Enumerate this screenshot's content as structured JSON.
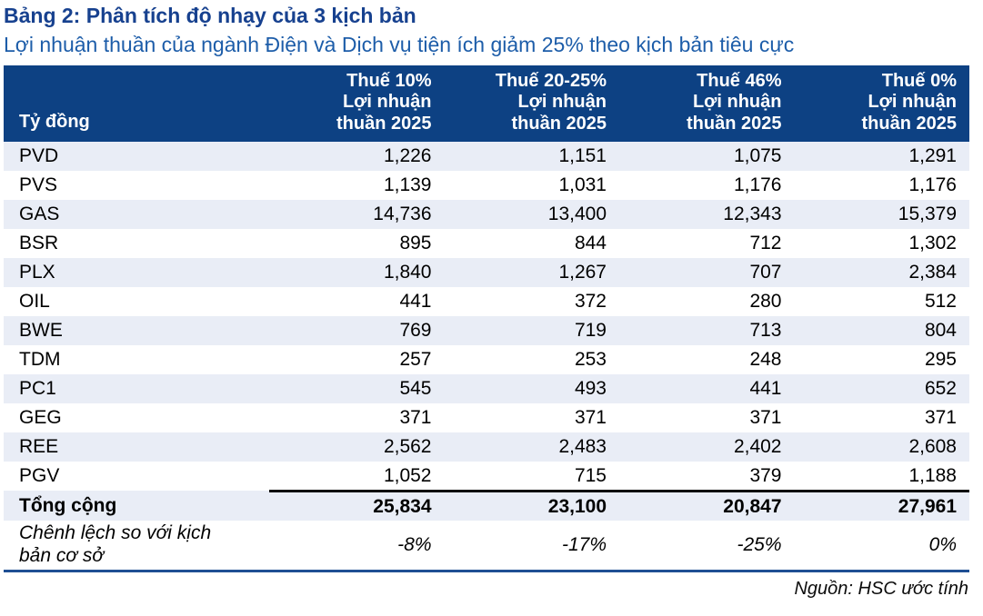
{
  "page": {
    "title": "Bảng 2: Phân tích độ nhạy của 3 kịch bản",
    "subtitle": "Lợi nhuận thuần của ngành Điện và Dịch vụ tiện ích giảm 25% theo kịch bản tiêu cực",
    "source": "Nguồn: HSC ước tính"
  },
  "colors": {
    "title_text": "#17418F",
    "subtitle_text": "#1D5DA9",
    "header_bg": "#0D4183",
    "header_text": "#FFFFFF",
    "row_stripe_bg": "#E9EDF6",
    "total_top_border": "#0B0B0B",
    "table_bottom_border": "#1F4F93"
  },
  "table": {
    "unit_label": "Tỷ đồng",
    "columns": [
      {
        "label": "Thuế 10%\nLợi nhuận\nthuần 2025"
      },
      {
        "label": "Thuế 20-25%\nLợi nhuận\nthuần 2025"
      },
      {
        "label": "Thuế 46%\nLợi nhuận\nthuần 2025"
      },
      {
        "label": "Thuế 0%\nLợi nhuận\nthuần 2025"
      }
    ],
    "rows": [
      {
        "ticker": "PVD",
        "values": [
          "1,226",
          "1,151",
          "1,075",
          "1,291"
        ]
      },
      {
        "ticker": "PVS",
        "values": [
          "1,139",
          "1,031",
          "1,176",
          "1,176"
        ]
      },
      {
        "ticker": "GAS",
        "values": [
          "14,736",
          "13,400",
          "12,343",
          "15,379"
        ]
      },
      {
        "ticker": "BSR",
        "values": [
          "895",
          "844",
          "712",
          "1,302"
        ]
      },
      {
        "ticker": "PLX",
        "values": [
          "1,840",
          "1,267",
          "707",
          "2,384"
        ]
      },
      {
        "ticker": "OIL",
        "values": [
          "441",
          "372",
          "280",
          "512"
        ]
      },
      {
        "ticker": "BWE",
        "values": [
          "769",
          "719",
          "713",
          "804"
        ]
      },
      {
        "ticker": "TDM",
        "values": [
          "257",
          "253",
          "248",
          "295"
        ]
      },
      {
        "ticker": "PC1",
        "values": [
          "545",
          "493",
          "441",
          "652"
        ]
      },
      {
        "ticker": "GEG",
        "values": [
          "371",
          "371",
          "371",
          "371"
        ]
      },
      {
        "ticker": "REE",
        "values": [
          "2,562",
          "2,483",
          "2,402",
          "2,608"
        ]
      },
      {
        "ticker": "PGV",
        "values": [
          "1,052",
          "715",
          "379",
          "1,188"
        ]
      }
    ],
    "total": {
      "label": "Tổng cộng",
      "values": [
        "25,834",
        "23,100",
        "20,847",
        "27,961"
      ]
    },
    "delta": {
      "label": "Chênh lệch so với kịch bản cơ sở",
      "values": [
        "-8%",
        "-17%",
        "-25%",
        "0%"
      ]
    }
  }
}
